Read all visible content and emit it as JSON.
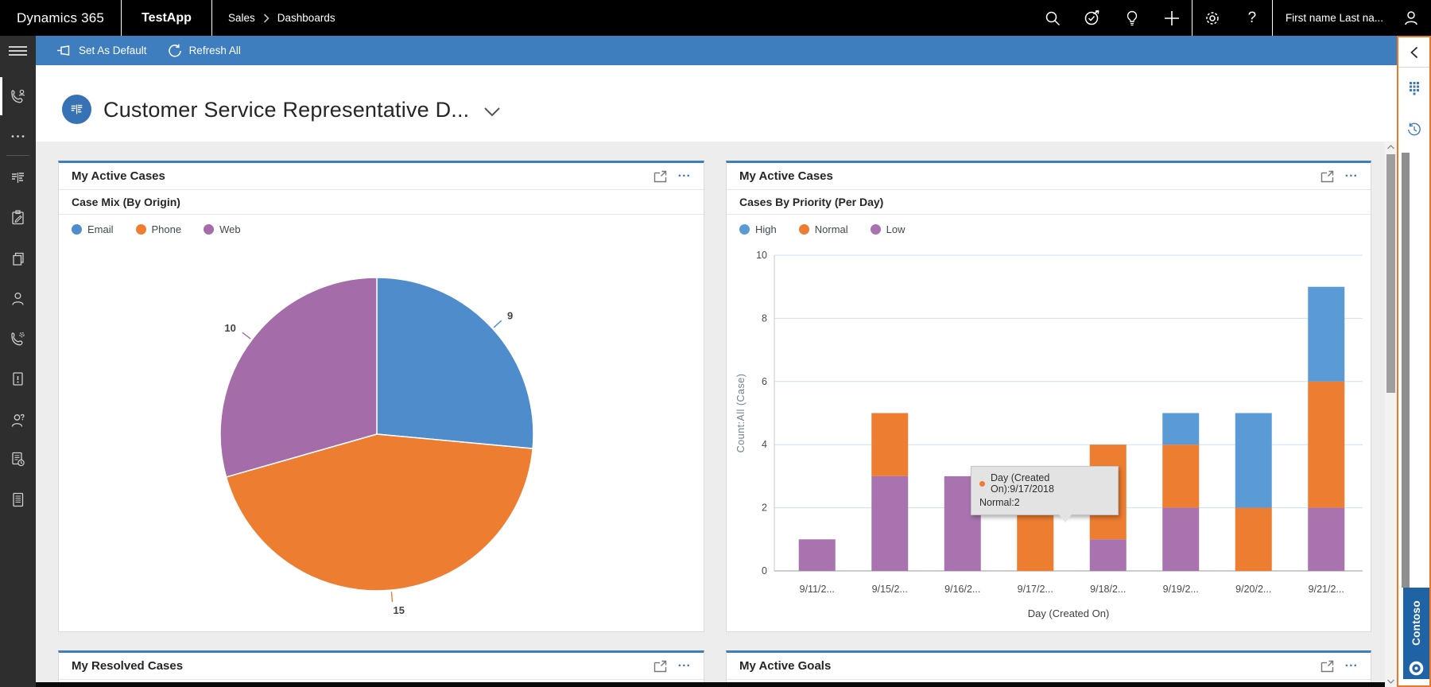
{
  "topbar": {
    "brand": "Dynamics 365",
    "app": "TestApp",
    "breadcrumb": {
      "area": "Sales",
      "page": "Dashboards"
    },
    "user_name": "First name Last na...",
    "help_glyph": "?",
    "plus_glyph": "+",
    "icon_names": [
      "search",
      "task-check",
      "lightbulb",
      "add",
      "settings-gear",
      "help",
      "user-avatar"
    ]
  },
  "toolbar": {
    "set_as_default": "Set As Default",
    "refresh_all": "Refresh All"
  },
  "page": {
    "title": "Customer Service Representative D..."
  },
  "sidebar": {
    "icon_names": [
      "hamburger-menu",
      "phone-person",
      "more-ellipsis",
      "dashboards",
      "activities",
      "documents",
      "contacts",
      "phone-settings",
      "cases",
      "contact-question",
      "reports",
      "articles"
    ]
  },
  "pie_card": {
    "title": "My Active Cases",
    "subtitle": "Case Mix (By Origin)",
    "menu_ellipsis": "...",
    "legend": [
      {
        "label": "Email",
        "color": "#4E8CCB"
      },
      {
        "label": "Phone",
        "color": "#ED7D31"
      },
      {
        "label": "Web",
        "color": "#A46CA8"
      }
    ]
  },
  "bar_card": {
    "title": "My Active Cases",
    "subtitle": "Cases By Priority (Per Day)",
    "menu_ellipsis": "...",
    "legend": [
      {
        "label": "High",
        "color": "#5B9BD5"
      },
      {
        "label": "Normal",
        "color": "#ED7D31"
      },
      {
        "label": "Low",
        "color": "#A873AE"
      }
    ],
    "tooltip": {
      "line1": "Day (Created On):9/17/2018",
      "line2": "Normal:2",
      "dot_color": "#ED7D31"
    }
  },
  "resolved_card": {
    "title": "My Resolved Cases",
    "menu_ellipsis": "..."
  },
  "goals_card": {
    "title": "My Active Goals",
    "menu_ellipsis": "..."
  },
  "side_panel": {
    "tenant": "Contoso",
    "icon_names": [
      "collapse-chevron",
      "dialpad-grid",
      "history-clock"
    ]
  },
  "colors": {
    "topbar_bg": "#000000",
    "command_bar": "#3E7DBE",
    "accent_blue": "#3E79BD",
    "canvas_bg": "#EDEDED",
    "sidebar_bg": "#2E2E2E",
    "panel_border_orange": "#E8782C",
    "contoso_blue": "#2063A4",
    "gridline": "#CCE0F4"
  },
  "chart_data": [
    {
      "type": "pie",
      "title": "Case Mix (By Origin)",
      "labels": [
        "Email",
        "Phone",
        "Web"
      ],
      "values": [
        9,
        15,
        10
      ],
      "colors": [
        "#4E8CCB",
        "#ED7D31",
        "#A46CA8"
      ],
      "legend_position": "top-left",
      "data_labels_shown": true
    },
    {
      "type": "bar",
      "stacked": true,
      "title": "Cases By Priority (Per Day)",
      "categories": [
        "9/11/2...",
        "9/15/2...",
        "9/16/2...",
        "9/17/2...",
        "9/18/2...",
        "9/19/2...",
        "9/20/2...",
        "9/21/2..."
      ],
      "series": [
        {
          "name": "High",
          "color": "#5B9BD5",
          "values": [
            0,
            0,
            0,
            0,
            0,
            1,
            3,
            3
          ]
        },
        {
          "name": "Normal",
          "color": "#ED7D31",
          "values": [
            0,
            2,
            0,
            2,
            3,
            2,
            2,
            4
          ]
        },
        {
          "name": "Low",
          "color": "#A873AE",
          "values": [
            1,
            3,
            3,
            0,
            1,
            2,
            0,
            2
          ]
        }
      ],
      "stack_order": [
        "Low",
        "Normal",
        "High"
      ],
      "xlabel": "Day (Created On)",
      "ylabel": "Count:All (Case)",
      "ylim": [
        0,
        10
      ],
      "yticks": [
        0,
        2,
        4,
        6,
        8,
        10
      ],
      "grid_color": "#CCE0F4",
      "legend_position": "top-left"
    }
  ]
}
